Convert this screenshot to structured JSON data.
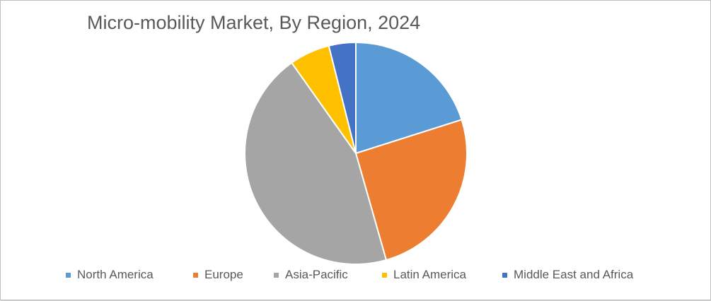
{
  "chart_data": {
    "type": "pie",
    "title": "Micro-mobility Market, By Region, 2024",
    "categories": [
      "North America",
      "Europe",
      "Asia-Pacific",
      "Latin America",
      "Middle East and Africa"
    ],
    "values": [
      20.5,
      26.0,
      45.5,
      6.0,
      4.0
    ],
    "colors": [
      "#5b9bd5",
      "#ed7d31",
      "#a5a5a5",
      "#ffc000",
      "#4472c4"
    ],
    "legend_position": "bottom"
  }
}
